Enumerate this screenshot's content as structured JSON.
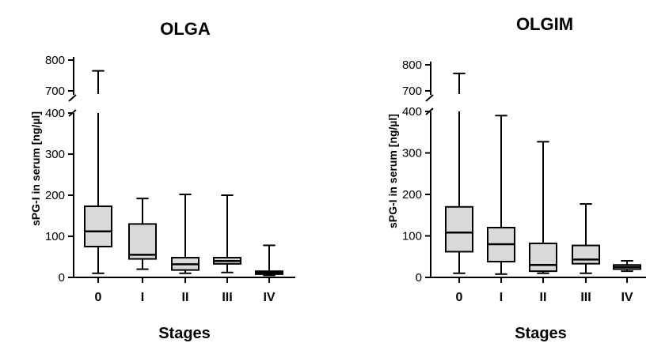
{
  "chart_data": [
    {
      "type": "box",
      "title": "OLGA",
      "xlabel": "Stages",
      "ylabel": "sPG-I in serum [ng/µl]",
      "categories": [
        "0",
        "I",
        "II",
        "III",
        "IV"
      ],
      "axis_break": {
        "lower": [
          0,
          400
        ],
        "upper": [
          700,
          800
        ]
      },
      "yticks_lower": [
        0,
        100,
        200,
        300,
        400
      ],
      "yticks_upper": [
        700,
        800
      ],
      "box_color": "#d9d9d9",
      "boxes": [
        {
          "min": 10,
          "q1": 75,
          "median": 112,
          "q3": 173,
          "max": 765
        },
        {
          "min": 20,
          "q1": 45,
          "median": 55,
          "q3": 130,
          "max": 192
        },
        {
          "min": 10,
          "q1": 18,
          "median": 32,
          "q3": 48,
          "max": 202
        },
        {
          "min": 12,
          "q1": 33,
          "median": 40,
          "q3": 48,
          "max": 200
        },
        {
          "min": 5,
          "q1": 8,
          "median": 12,
          "q3": 15,
          "max": 78
        }
      ]
    },
    {
      "type": "box",
      "title": "OLGIM",
      "xlabel": "Stages",
      "ylabel": "sPG-I in serum [ng/µl]",
      "categories": [
        "0",
        "I",
        "II",
        "III",
        "IV"
      ],
      "axis_break": {
        "lower": [
          0,
          400
        ],
        "upper": [
          700,
          800
        ]
      },
      "yticks_lower": [
        0,
        100,
        200,
        300,
        400
      ],
      "yticks_upper": [
        700,
        800
      ],
      "box_color": "#d9d9d9",
      "boxes": [
        {
          "min": 10,
          "q1": 62,
          "median": 108,
          "q3": 170,
          "max": 767
        },
        {
          "min": 8,
          "q1": 38,
          "median": 80,
          "q3": 120,
          "max": 390
        },
        {
          "min": 10,
          "q1": 15,
          "median": 30,
          "q3": 82,
          "max": 327
        },
        {
          "min": 10,
          "q1": 33,
          "median": 43,
          "q3": 77,
          "max": 177
        },
        {
          "min": 15,
          "q1": 20,
          "median": 25,
          "q3": 30,
          "max": 40
        }
      ]
    }
  ]
}
